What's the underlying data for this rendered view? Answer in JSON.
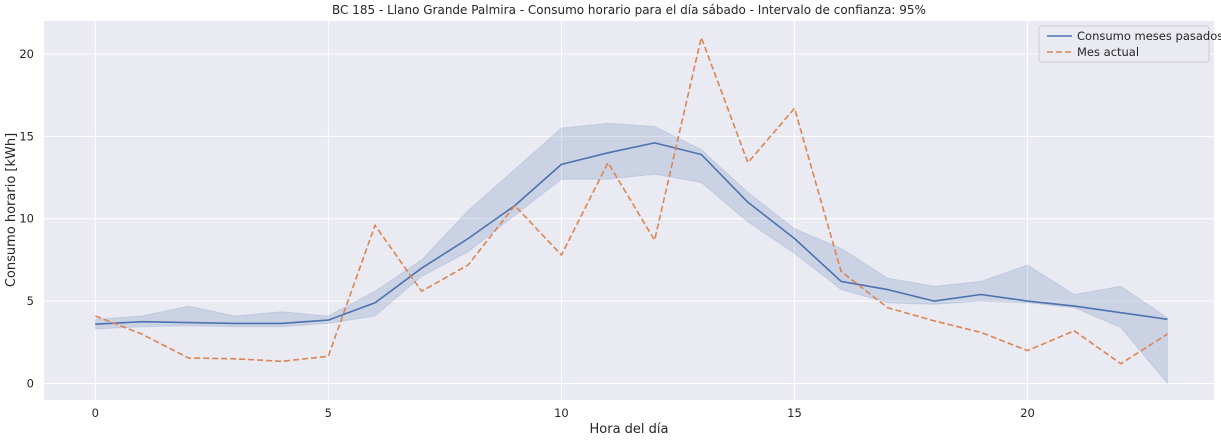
{
  "chart_data": {
    "type": "line",
    "title": "BC 185 - Llano Grande Palmira - Consumo horario para el día sábado - Intervalo de confianza: 95%",
    "xlabel": "Hora del día",
    "ylabel": "Consumo horario [kWh]",
    "xlim": [
      -1.1,
      24.0
    ],
    "ylim": [
      -1.0,
      22.0
    ],
    "xticks": [
      0,
      5,
      10,
      15,
      20
    ],
    "yticks": [
      0,
      5,
      10,
      15,
      20
    ],
    "grid": true,
    "legend_position": "top-right",
    "x": [
      0,
      1,
      2,
      3,
      4,
      5,
      6,
      7,
      8,
      9,
      10,
      11,
      12,
      13,
      14,
      15,
      16,
      17,
      18,
      19,
      20,
      21,
      22,
      23
    ],
    "series": [
      {
        "name": "Consumo meses pasados",
        "style": "solid",
        "color": "#4c72b0",
        "values": [
          3.6,
          3.75,
          3.7,
          3.65,
          3.65,
          3.85,
          4.9,
          7.0,
          8.8,
          10.8,
          13.3,
          14.0,
          14.6,
          13.9,
          11.0,
          8.8,
          6.2,
          5.7,
          5.0,
          5.4,
          5.0,
          4.7,
          4.3,
          3.9
        ],
        "ci_lower": [
          3.3,
          3.45,
          3.5,
          3.45,
          3.45,
          3.65,
          4.1,
          6.5,
          8.0,
          10.2,
          12.4,
          12.4,
          12.7,
          12.2,
          9.8,
          7.9,
          5.7,
          4.9,
          4.8,
          5.0,
          4.9,
          4.6,
          3.4,
          0.0
        ],
        "ci_upper": [
          3.9,
          4.1,
          4.7,
          4.1,
          4.35,
          4.1,
          5.6,
          7.5,
          10.5,
          13.0,
          15.5,
          15.8,
          15.6,
          14.2,
          11.6,
          9.4,
          8.2,
          6.4,
          5.9,
          6.2,
          7.2,
          5.4,
          5.9,
          4.0
        ]
      },
      {
        "name": "Mes actual",
        "style": "dashed",
        "color": "#dd8452",
        "values": [
          4.1,
          3.0,
          1.55,
          1.5,
          1.35,
          1.65,
          9.6,
          5.6,
          7.2,
          10.8,
          7.8,
          13.4,
          8.7,
          21.0,
          13.4,
          16.7,
          6.8,
          4.6,
          3.8,
          3.1,
          2.0,
          3.2,
          1.2,
          3.0
        ]
      }
    ],
    "colors": {
      "plot_background": "#eaeaf2",
      "grid": "#ffffff",
      "ci_fill": "#4c72b0"
    }
  }
}
